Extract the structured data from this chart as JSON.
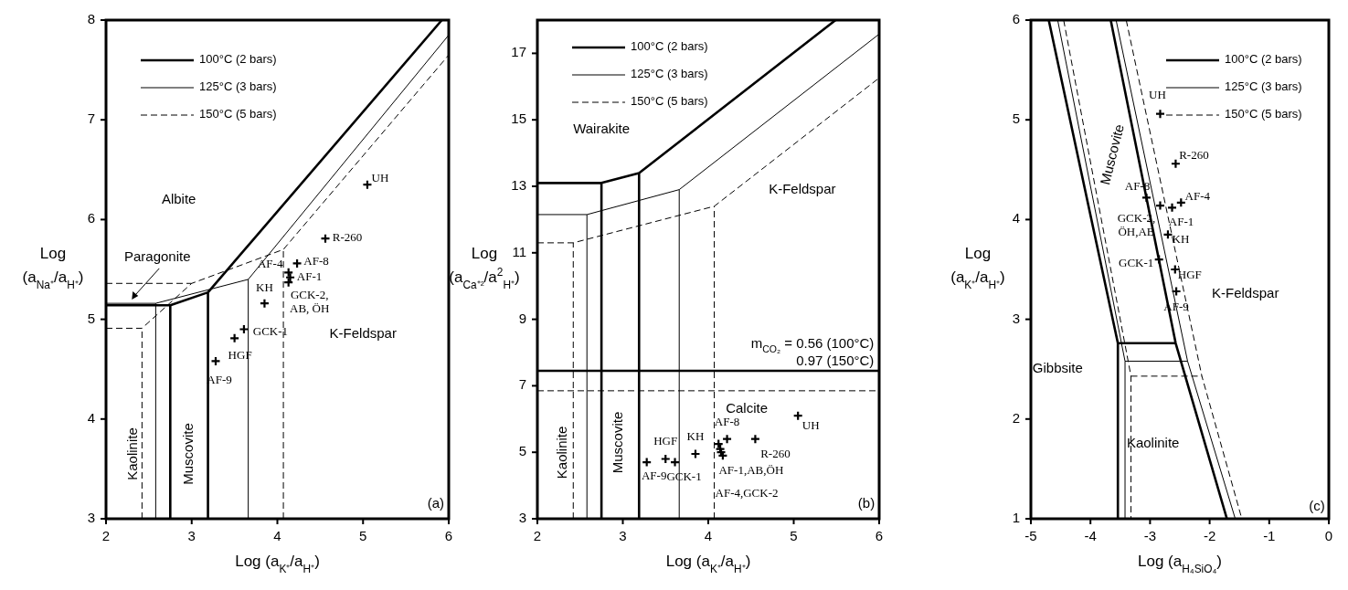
{
  "chart_data": [
    {
      "type": "line",
      "xlabel": "Log (a$_{K⁺}$/a$_{H⁺}$)",
      "ylabel": "Log\n(a$_{Na⁺}$/a$_{H⁺}$)",
      "xlim": [
        2,
        6
      ],
      "ylim": [
        3,
        8
      ],
      "xticks": [
        2,
        3,
        4,
        5,
        6
      ],
      "yticks": [
        3,
        4,
        5,
        6,
        7,
        8
      ],
      "legend": "top left",
      "series": [
        {
          "name": "100°C (2 bars)",
          "color": "#000000",
          "line_style": "solid",
          "x": [
            2,
            2.75,
            3.19,
            5.92,
            null,
            2.75,
            2.75,
            null,
            3.19,
            3.19
          ],
          "values": [
            5.14,
            5.14,
            5.27,
            8,
            null,
            3,
            5.14,
            null,
            3,
            5.27
          ]
        },
        {
          "name": "125°C (3 bars)",
          "color": "#000000",
          "line_style": "solid",
          "x": [
            2,
            2.58,
            3.66,
            6,
            null,
            2.58,
            2.58,
            null,
            3.66,
            3.66
          ],
          "values": [
            5.16,
            5.16,
            5.4,
            7.85,
            null,
            3,
            5.16,
            null,
            3,
            5.4
          ]
        },
        {
          "name": "150°C (5 bars)",
          "color": "#000000",
          "line_style": "dashed",
          "x": [
            2,
            3,
            null,
            2,
            2.42,
            3,
            4.07,
            6,
            null,
            2.42,
            2.42,
            null,
            4.07,
            4.07
          ],
          "values": [
            5.36,
            5.36,
            null,
            4.91,
            4.91,
            5.36,
            5.7,
            7.65,
            null,
            3,
            4.91,
            null,
            3,
            5.7
          ]
        },
        {
          "type": "scatter",
          "color": "#000000",
          "marker": "cross",
          "x": [
            5.05,
            4.56,
            4.23,
            4.13,
            4.15,
            4.13,
            3.85,
            3.61,
            3.5,
            3.28
          ],
          "values": [
            6.35,
            5.81,
            5.56,
            5.47,
            5.42,
            5.37,
            5.16,
            4.9,
            4.81,
            4.58
          ]
        }
      ],
      "annotations": [
        {
          "text": "UH",
          "x": 5.05,
          "y": 6.35
        },
        {
          "text": "R-260",
          "x": 4.56,
          "y": 5.81
        },
        {
          "text": "AF-8",
          "x": 4.23,
          "y": 5.56
        },
        {
          "text": "AF-4",
          "x": 4.13,
          "y": 5.47
        },
        {
          "text": "AF-1",
          "x": 4.15,
          "y": 5.42
        },
        {
          "text": "GCK-2,\nAB, ÖH",
          "x": 4.13,
          "y": 5.37
        },
        {
          "text": "KH",
          "x": 3.85,
          "y": 5.16
        },
        {
          "text": "GCK-1",
          "x": 3.61,
          "y": 4.9
        },
        {
          "text": "HGF",
          "x": 3.5,
          "y": 4.81
        },
        {
          "text": "AF-9",
          "x": 3.28,
          "y": 4.58
        },
        "Albite",
        "Paragonite",
        "K-Feldspar",
        "Kaolinite",
        "Muscovite",
        "(a)"
      ]
    },
    {
      "type": "line",
      "xlabel": "Log (a$_{K⁺}$/a$_{H⁺}$)",
      "ylabel": "Log\n(a$_{Ca⁺²}$/a$^{2}$$_{H⁺}$)",
      "xlim": [
        2,
        6
      ],
      "ylim": [
        3,
        18
      ],
      "xticks": [
        2,
        3,
        4,
        5,
        6
      ],
      "yticks": [
        3,
        5,
        7,
        9,
        11,
        13,
        15,
        17
      ],
      "legend": "top left",
      "series": [
        {
          "name": "100°C (2 bars)",
          "color": "#000000",
          "line_style": "solid",
          "x": [
            2,
            2.75,
            3.19,
            5.49,
            null,
            2.75,
            2.75,
            null,
            3.19,
            3.19,
            null,
            2,
            6
          ],
          "values": [
            13.1,
            13.1,
            13.4,
            18,
            null,
            3,
            13.1,
            null,
            3,
            13.4,
            null,
            7.45,
            7.45
          ]
        },
        {
          "name": "125°C (3 bars)",
          "color": "#000000",
          "line_style": "solid",
          "x": [
            2,
            2.58,
            3.66,
            6,
            null,
            2.58,
            2.58,
            null,
            3.66,
            3.66
          ],
          "values": [
            12.15,
            12.15,
            12.9,
            17.58,
            null,
            3,
            12.15,
            null,
            3,
            12.9
          ]
        },
        {
          "name": "150°C (5 bars)",
          "color": "#000000",
          "line_style": "dashed",
          "x": [
            2,
            2.42,
            4.07,
            6,
            null,
            2.42,
            2.42,
            null,
            4.07,
            4.07,
            null,
            2,
            6
          ],
          "values": [
            11.3,
            11.3,
            12.4,
            16.26,
            null,
            3,
            11.3,
            null,
            3,
            12.4,
            null,
            6.85,
            6.85
          ]
        },
        {
          "type": "scatter",
          "color": "#000000",
          "marker": "cross",
          "x": [
            3.28,
            3.5,
            3.61,
            3.85,
            4.22,
            4.12,
            4.14,
            4.15,
            4.17,
            4.55,
            5.05
          ],
          "values": [
            4.7,
            4.8,
            4.7,
            4.95,
            5.4,
            5.25,
            5.1,
            5.0,
            4.9,
            5.4,
            6.1
          ]
        }
      ],
      "annotations": [
        {
          "text": "AF-9",
          "x": 3.28,
          "y": 4.7
        },
        {
          "text": "HGF",
          "x": 3.5,
          "y": 4.8
        },
        {
          "text": "GCK-1",
          "x": 3.61,
          "y": 4.7
        },
        {
          "text": "KH",
          "x": 3.85,
          "y": 4.95
        },
        {
          "text": "AF-8",
          "x": 4.22,
          "y": 5.4
        },
        {
          "text": "R-260",
          "x": 4.55,
          "y": 5.4
        },
        {
          "text": "UH",
          "x": 5.05,
          "y": 6.1
        },
        {
          "text": "AF-1,AB,ÖH",
          "x": 4.17,
          "y": 4.9
        },
        {
          "text": "AF-4,GCK-2",
          "x": 4.15,
          "y": 5.0
        },
        "Wairakite",
        "K-Feldspar",
        "Calcite",
        "Kaolinite",
        "Muscovite",
        "(b)",
        "m$_{CO₂}$ = 0.56 (100°C)",
        "0.97 (150°C)"
      ]
    },
    {
      "type": "line",
      "xlabel": "Log (a$_{H₄SiO₄}$)",
      "ylabel": "Log\n(a$_{K⁺}$/a$_{H⁺}$)",
      "xlim": [
        -5,
        0
      ],
      "ylim": [
        1,
        6
      ],
      "xticks": [
        -5,
        -4,
        -3,
        -2,
        -1,
        0
      ],
      "yticks": [
        1,
        2,
        3,
        4,
        5,
        6
      ],
      "legend": "top right",
      "series": [
        {
          "name": "100°C (2 bars)",
          "color": "#000000",
          "line_style": "solid",
          "x": [
            -4.7,
            -3.54,
            -3.54,
            null,
            -3.54,
            -2.57,
            null,
            -3.66,
            -2.57,
            -1.71
          ],
          "values": [
            6,
            2.76,
            1,
            null,
            2.76,
            2.76,
            null,
            6,
            2.76,
            1
          ]
        },
        {
          "name": "125°C (3 bars)",
          "color": "#000000",
          "line_style": "solid",
          "x": [
            -4.55,
            -3.42,
            -3.42,
            null,
            -3.42,
            -2.37,
            null,
            -3.57,
            -2.37,
            -1.57
          ],
          "values": [
            6,
            2.58,
            1,
            null,
            2.58,
            2.58,
            null,
            6,
            2.58,
            1
          ]
        },
        {
          "name": "150°C (5 bars)",
          "color": "#000000",
          "line_style": "dashed",
          "x": [
            -4.45,
            -3.32,
            -3.32,
            null,
            -3.32,
            -2.13,
            null,
            -3.4,
            -2.13,
            -1.46
          ],
          "values": [
            6,
            2.43,
            1,
            null,
            2.43,
            2.43,
            null,
            6,
            2.43,
            1
          ]
        },
        {
          "type": "scatter",
          "color": "#000000",
          "marker": "cross",
          "x": [
            -2.83,
            -2.57,
            -3.06,
            -2.83,
            -2.63,
            -2.48,
            -2.7,
            -2.85,
            -2.58,
            -2.56
          ],
          "values": [
            5.06,
            4.56,
            4.22,
            4.14,
            4.12,
            4.17,
            3.85,
            3.6,
            3.5,
            3.28
          ]
        }
      ],
      "annotations": [
        {
          "text": "UH",
          "x": -2.83,
          "y": 5.06
        },
        {
          "text": "R-260",
          "x": -2.57,
          "y": 4.56
        },
        {
          "text": "AF-8",
          "x": -3.06,
          "y": 4.22
        },
        {
          "text": "AF-4",
          "x": -2.48,
          "y": 4.17
        },
        {
          "text": "GCK-2,\nÖH,AB",
          "x": -2.83,
          "y": 4.14
        },
        {
          "text": "AF-1",
          "x": -2.63,
          "y": 4.12
        },
        {
          "text": "KH",
          "x": -2.7,
          "y": 3.85
        },
        {
          "text": "GCK-1",
          "x": -2.85,
          "y": 3.6
        },
        {
          "text": "HGF",
          "x": -2.58,
          "y": 3.5
        },
        {
          "text": "AF-9",
          "x": -2.56,
          "y": 3.28
        },
        "Muscovite",
        "K-Feldspar",
        "Gibbsite",
        "Kaolinite",
        "(c)"
      ]
    }
  ]
}
